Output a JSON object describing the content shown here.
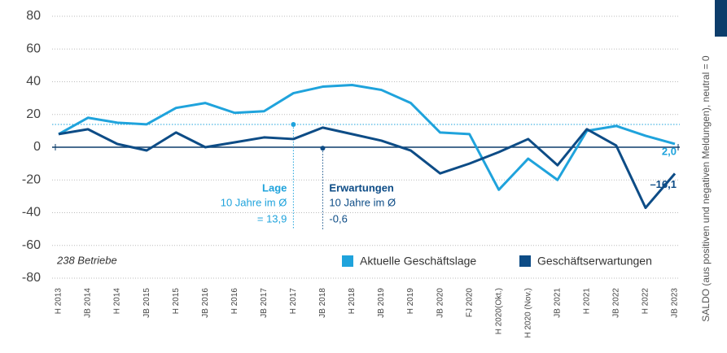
{
  "chart_data": {
    "type": "line",
    "y_label": "SALDO (aus positiven und negativen Meldungen), neutral = 0",
    "note": "238 Betriebe",
    "categories": [
      "H 2013",
      "JB 2014",
      "H 2014",
      "JB 2015",
      "H 2015",
      "JB 2016",
      "H 2016",
      "JB 2017",
      "H 2017",
      "JB 2018",
      "H 2018",
      "JB 2019",
      "H 2019",
      "JB 2020",
      "FJ 2020",
      "H 2020(Okt.)",
      "H 2020 (Nov.)",
      "JB 2021",
      "H 2021",
      "JB 2022",
      "H 2022",
      "JB 2023"
    ],
    "series": [
      {
        "name": "Aktuelle Geschäftslage",
        "color": "#1fa3dc",
        "values": [
          8,
          18,
          15,
          14,
          24,
          27,
          21,
          22,
          33,
          37,
          38,
          35,
          27,
          9,
          8,
          -26,
          -7,
          -20,
          10,
          13,
          7,
          2
        ],
        "value_labels": [
          null,
          null,
          null,
          null,
          null,
          null,
          null,
          null,
          null,
          null,
          null,
          null,
          null,
          null,
          null,
          null,
          null,
          null,
          null,
          null,
          null,
          "2,0"
        ]
      },
      {
        "name": "Geschäftserwartungen",
        "color": "#0d4c86",
        "values": [
          8,
          11,
          2,
          -2,
          9,
          0,
          3,
          6,
          5,
          12,
          8,
          4,
          -2,
          -16,
          -10,
          -3,
          5,
          -11,
          11,
          1,
          -37,
          -16.1
        ],
        "value_labels": [
          null,
          null,
          null,
          null,
          null,
          null,
          null,
          null,
          null,
          null,
          null,
          null,
          null,
          null,
          null,
          null,
          null,
          null,
          null,
          null,
          null,
          "–16,1"
        ]
      }
    ],
    "averages": [
      {
        "name": "Lage",
        "label": "10 Jahre im Ø",
        "value": 13.9,
        "value_label": "= 13,9",
        "color": "#1fa3dc"
      },
      {
        "name": "Erwartungen",
        "label": "10 Jahre im Ø",
        "value": -0.6,
        "value_label": "-0,6",
        "color": "#0d4c86"
      }
    ],
    "ylim": [
      -80,
      80
    ],
    "yticks": [
      -80,
      -60,
      -40,
      -20,
      0,
      20,
      40,
      60,
      80
    ],
    "grid": true,
    "legend": "bottom-right"
  }
}
